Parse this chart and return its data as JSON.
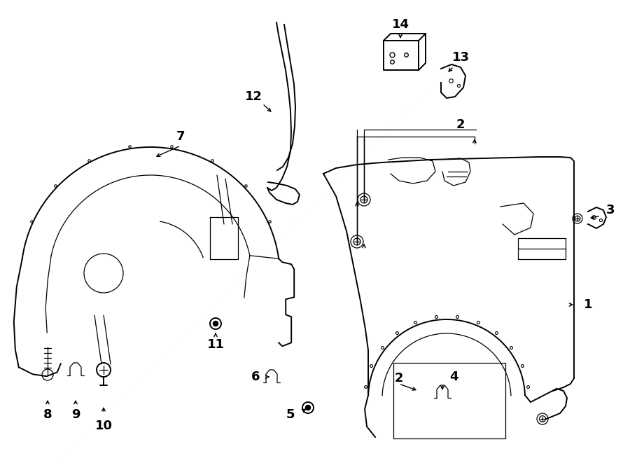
{
  "background_color": "#ffffff",
  "line_color": "#000000",
  "lw": 1.4,
  "lw_thin": 0.9,
  "fig_width": 9.0,
  "fig_height": 6.61,
  "dpi": 100
}
